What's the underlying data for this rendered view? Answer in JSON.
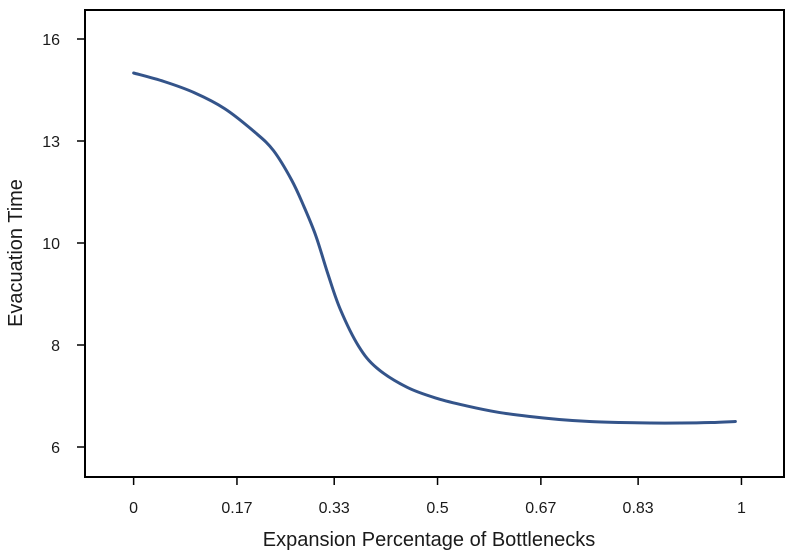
{
  "chart_data": {
    "type": "line",
    "title": "",
    "xlabel": "Expansion Percentage of Bottlenecks",
    "ylabel": "Evacuation Time",
    "x_ticks": [
      {
        "label": "0",
        "value": 0
      },
      {
        "label": "0.17",
        "value": 0.17
      },
      {
        "label": "0.33",
        "value": 0.33
      },
      {
        "label": "0.5",
        "value": 0.5
      },
      {
        "label": "0.67",
        "value": 0.67
      },
      {
        "label": "0.83",
        "value": 0.83
      },
      {
        "label": "1",
        "value": 1
      }
    ],
    "y_ticks": [
      {
        "label": "6",
        "value": 6
      },
      {
        "label": "8",
        "value": 8
      },
      {
        "label": "10",
        "value": 10
      },
      {
        "label": "13",
        "value": 13
      },
      {
        "label": "16",
        "value": 16
      }
    ],
    "xlim": [
      -0.08,
      1.07
    ],
    "grid": false,
    "series": [
      {
        "color": "#34548a",
        "x": [
          0,
          0.05,
          0.1,
          0.15,
          0.2,
          0.23,
          0.26,
          0.28,
          0.3,
          0.32,
          0.34,
          0.37,
          0.4,
          0.45,
          0.5,
          0.55,
          0.6,
          0.65,
          0.7,
          0.75,
          0.8,
          0.85,
          0.9,
          0.95,
          0.99
        ],
        "y": [
          15.0,
          14.75,
          14.42,
          13.95,
          13.25,
          12.72,
          11.85,
          11.08,
          10.2,
          9.38,
          8.7,
          7.98,
          7.55,
          7.17,
          6.95,
          6.8,
          6.68,
          6.6,
          6.54,
          6.5,
          6.48,
          6.47,
          6.47,
          6.48,
          6.5
        ]
      }
    ]
  }
}
